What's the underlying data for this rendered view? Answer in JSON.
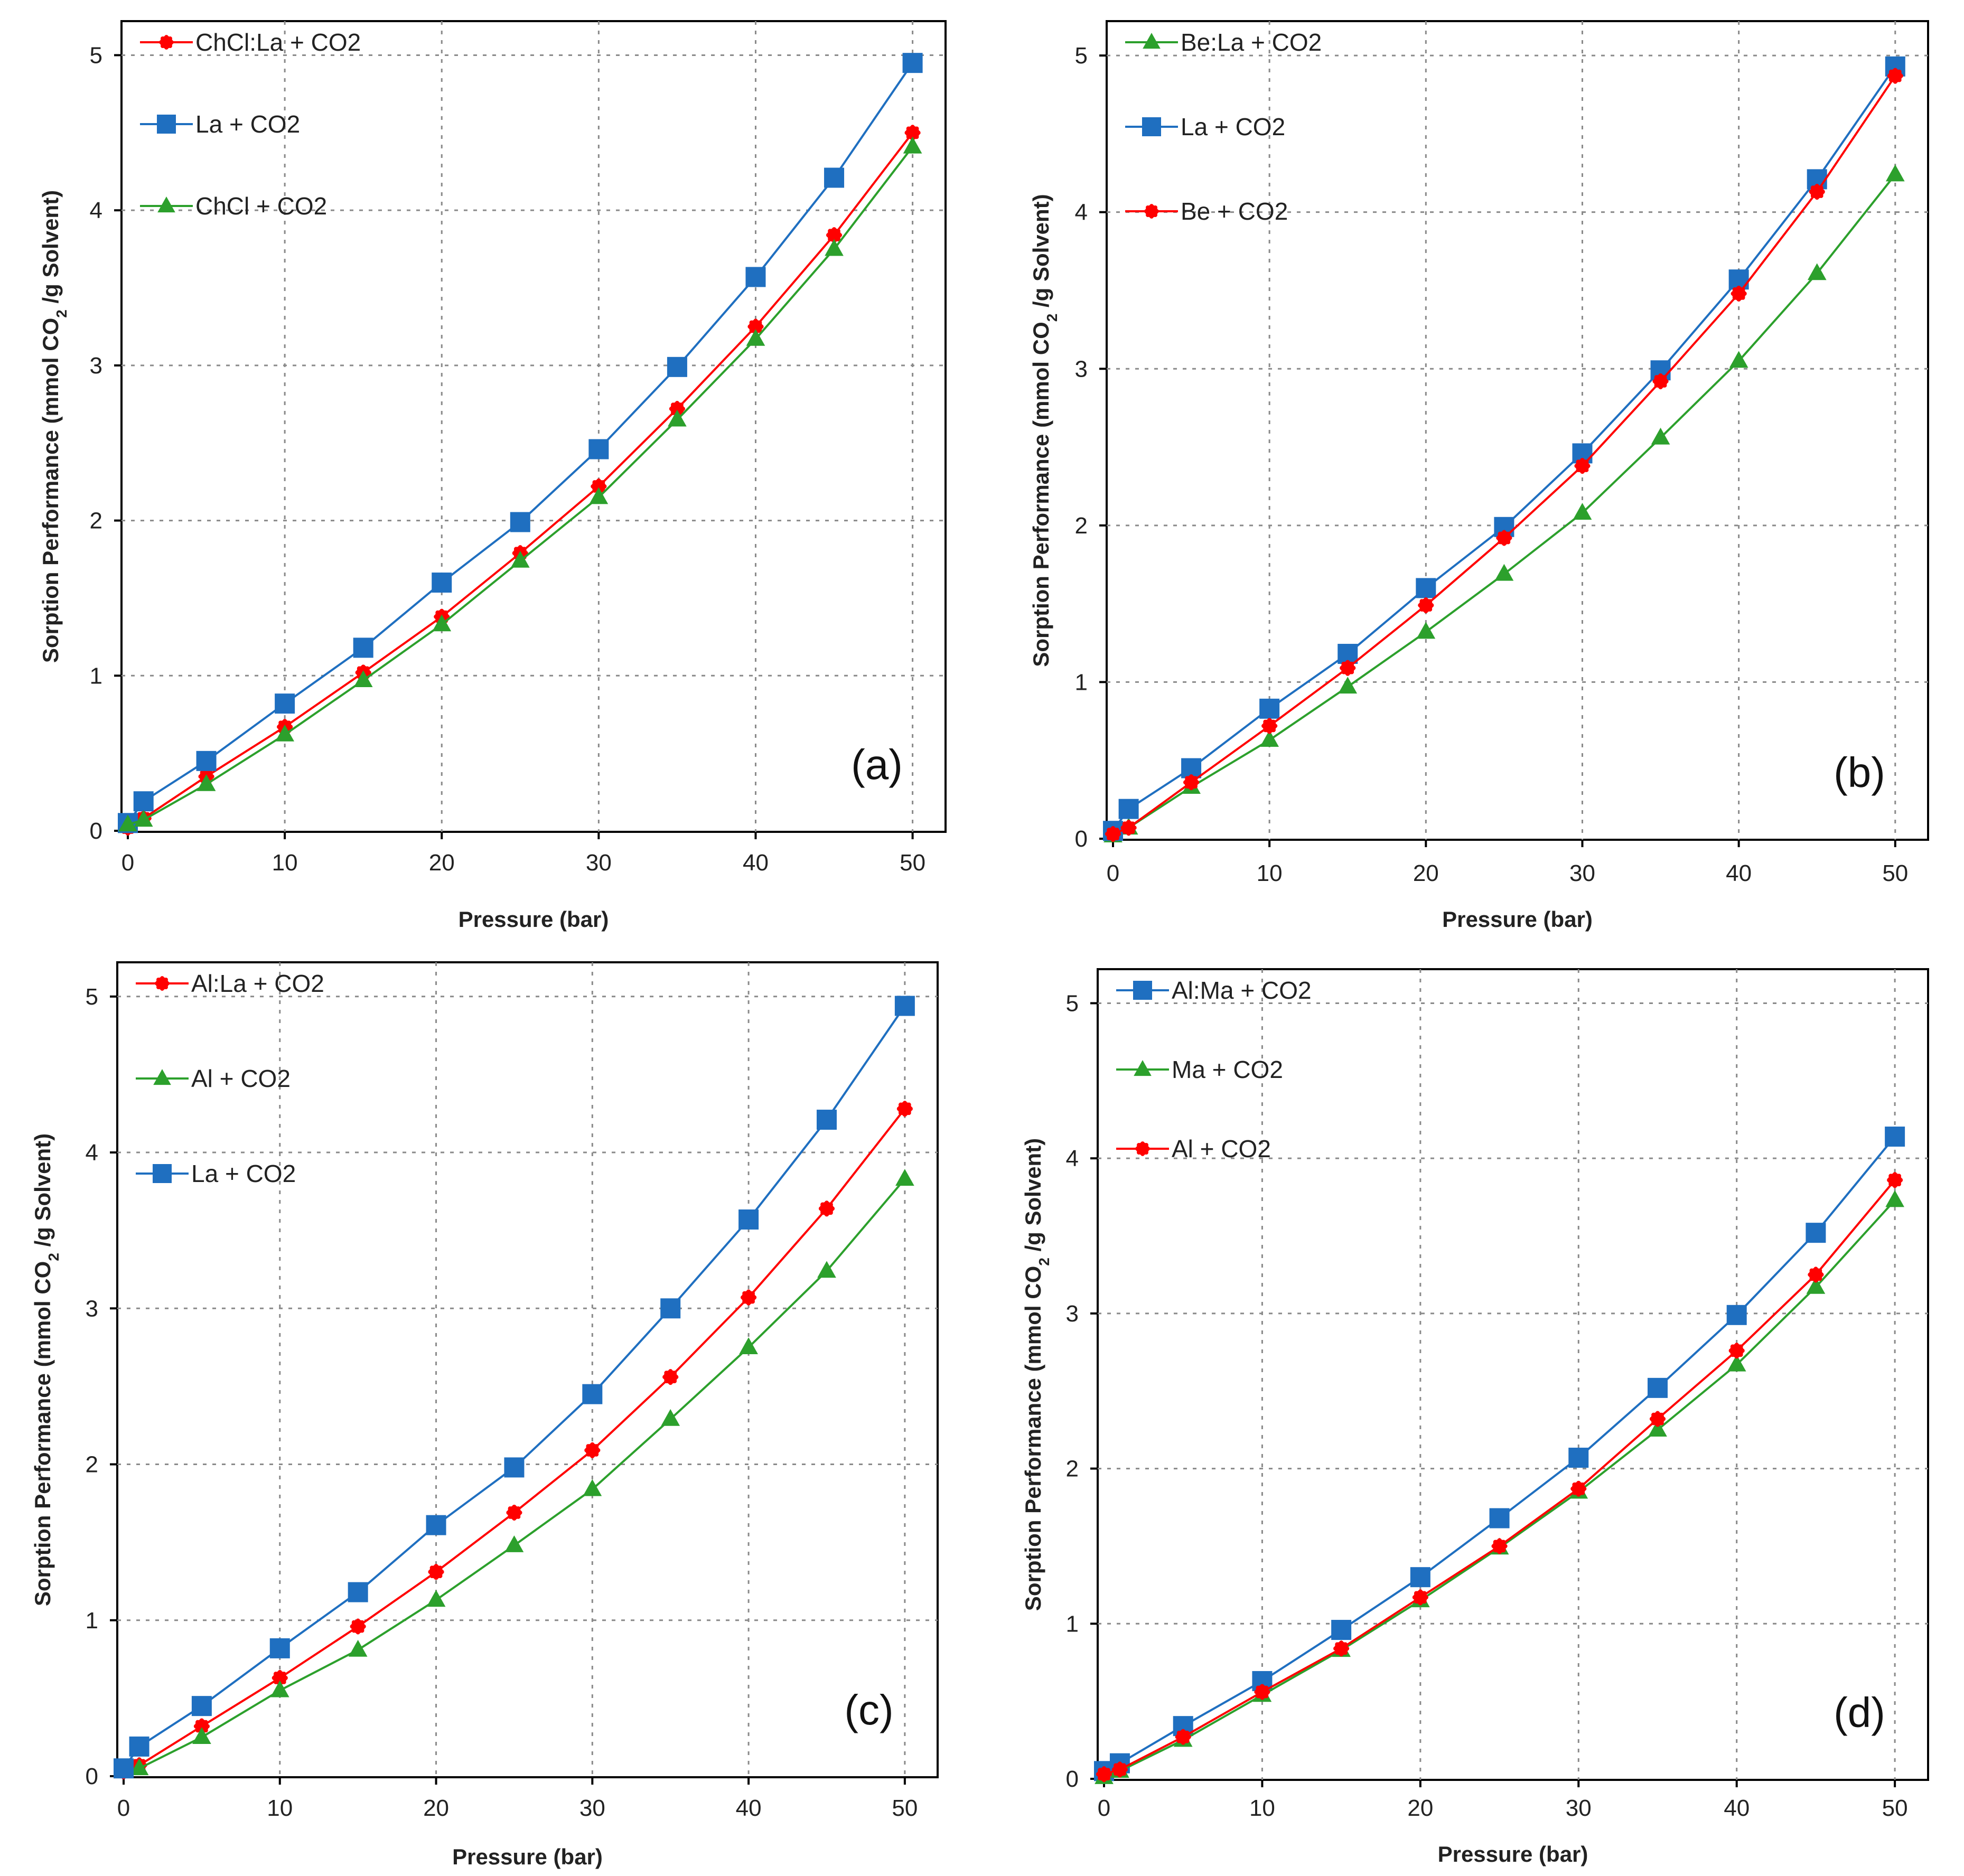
{
  "chart_data": [
    {
      "type": "line",
      "panel_label": "(a)",
      "xlabel": "Pressure (bar)",
      "ylabel_prefix": "Sorption Performance (mmol CO",
      "ylabel_sub": "2",
      "ylabel_suffix": " /g Solvent)",
      "xlim": [
        0,
        50
      ],
      "ylim": [
        0,
        5
      ],
      "xticks": [
        0,
        10,
        20,
        30,
        40,
        50
      ],
      "yticks": [
        0,
        1,
        2,
        3,
        4,
        5
      ],
      "grid": true,
      "legend_position": "top-left",
      "series": [
        {
          "name": "ChCl:La + CO2",
          "color": "#ff0000",
          "marker": "circle",
          "x": [
            0,
            1,
            5,
            10,
            15,
            20,
            25,
            30,
            35,
            40,
            45,
            50
          ],
          "values": [
            0.02,
            0.08,
            0.35,
            0.67,
            1.02,
            1.38,
            1.79,
            2.22,
            2.72,
            3.25,
            3.84,
            4.5
          ]
        },
        {
          "name": "La + CO2",
          "color": "#1f6fc0",
          "marker": "square",
          "x": [
            0,
            1,
            5,
            10,
            15,
            20,
            25,
            30,
            35,
            40,
            45,
            50
          ],
          "values": [
            0.05,
            0.19,
            0.45,
            0.82,
            1.18,
            1.6,
            1.99,
            2.46,
            2.99,
            3.57,
            4.21,
            4.95
          ]
        },
        {
          "name": "ChCl + CO2",
          "color": "#2ca02c",
          "marker": "triangle",
          "x": [
            0,
            1,
            5,
            10,
            15,
            20,
            25,
            30,
            35,
            40,
            45,
            50
          ],
          "values": [
            0.04,
            0.07,
            0.3,
            0.62,
            0.97,
            1.33,
            1.74,
            2.15,
            2.65,
            3.17,
            3.75,
            4.41
          ]
        }
      ]
    },
    {
      "type": "line",
      "panel_label": "(b)",
      "xlabel": "Pressure (bar)",
      "ylabel_prefix": "Sorption Performance (mmol CO",
      "ylabel_sub": "2",
      "ylabel_suffix": " /g Solvent)",
      "xlim": [
        0,
        50
      ],
      "ylim": [
        0,
        5
      ],
      "xticks": [
        0,
        10,
        20,
        30,
        40,
        50
      ],
      "yticks": [
        0,
        1,
        2,
        3,
        4,
        5
      ],
      "grid": true,
      "legend_position": "top-left",
      "series": [
        {
          "name": "Be:La + CO2",
          "color": "#2ca02c",
          "marker": "triangle",
          "x": [
            0,
            1,
            5,
            10,
            15,
            20,
            25,
            30,
            35,
            40,
            45,
            50
          ],
          "values": [
            0.02,
            0.07,
            0.33,
            0.63,
            0.97,
            1.32,
            1.69,
            2.08,
            2.56,
            3.05,
            3.61,
            4.24
          ]
        },
        {
          "name": "La + CO2",
          "color": "#1f6fc0",
          "marker": "square",
          "x": [
            0,
            1,
            5,
            10,
            15,
            20,
            25,
            30,
            35,
            40,
            45,
            50
          ],
          "values": [
            0.05,
            0.19,
            0.45,
            0.83,
            1.18,
            1.6,
            1.99,
            2.46,
            2.99,
            3.57,
            4.21,
            4.93
          ]
        },
        {
          "name": "Be + CO2",
          "color": "#ff0000",
          "marker": "circle",
          "x": [
            0,
            1,
            5,
            10,
            15,
            20,
            25,
            30,
            35,
            40,
            45,
            50
          ],
          "values": [
            0.03,
            0.07,
            0.36,
            0.72,
            1.09,
            1.49,
            1.92,
            2.38,
            2.92,
            3.48,
            4.13,
            4.87
          ]
        }
      ]
    },
    {
      "type": "line",
      "panel_label": "(c)",
      "xlabel": "Pressure (bar)",
      "ylabel_prefix": "Sorption Performance (mmol CO",
      "ylabel_sub": "2",
      "ylabel_suffix": " /g Solvent)",
      "xlim": [
        0,
        50
      ],
      "ylim": [
        0,
        5
      ],
      "xticks": [
        0,
        10,
        20,
        30,
        40,
        50
      ],
      "yticks": [
        0,
        1,
        2,
        3,
        4,
        5
      ],
      "grid": true,
      "legend_position": "top-left",
      "series": [
        {
          "name": "Al:La + CO2",
          "color": "#ff0000",
          "marker": "circle",
          "x": [
            0,
            1,
            5,
            10,
            15,
            20,
            25,
            30,
            35,
            40,
            45,
            50
          ],
          "values": [
            0.03,
            0.07,
            0.32,
            0.63,
            0.96,
            1.31,
            1.69,
            2.09,
            2.56,
            3.07,
            3.64,
            4.28
          ]
        },
        {
          "name": "Al + CO2",
          "color": "#2ca02c",
          "marker": "triangle",
          "x": [
            0,
            1,
            5,
            10,
            15,
            20,
            25,
            30,
            35,
            40,
            45,
            50
          ],
          "values": [
            0.03,
            0.05,
            0.25,
            0.55,
            0.81,
            1.13,
            1.48,
            1.84,
            2.29,
            2.75,
            3.24,
            3.83
          ]
        },
        {
          "name": "La + CO2",
          "color": "#1f6fc0",
          "marker": "square",
          "x": [
            0,
            1,
            5,
            10,
            15,
            20,
            25,
            30,
            35,
            40,
            45,
            50
          ],
          "values": [
            0.05,
            0.19,
            0.45,
            0.82,
            1.18,
            1.61,
            1.98,
            2.45,
            3.0,
            3.57,
            4.21,
            4.94
          ]
        }
      ]
    },
    {
      "type": "line",
      "panel_label": "(d)",
      "xlabel": "Pressure (bar)",
      "ylabel_prefix": "Sorption Performance (mmol CO",
      "ylabel_sub": "2",
      "ylabel_suffix": " /g Solvent)",
      "xlim": [
        0,
        50
      ],
      "ylim": [
        0,
        5
      ],
      "xticks": [
        0,
        10,
        20,
        30,
        40,
        50
      ],
      "yticks": [
        0,
        1,
        2,
        3,
        4,
        5
      ],
      "grid": true,
      "legend_position": "top-left",
      "series": [
        {
          "name": "Al:Ma + CO2",
          "color": "#1f6fc0",
          "marker": "square",
          "x": [
            0,
            1,
            5,
            10,
            15,
            20,
            25,
            30,
            35,
            40,
            45,
            50
          ],
          "values": [
            0.05,
            0.1,
            0.34,
            0.63,
            0.96,
            1.3,
            1.68,
            2.07,
            2.52,
            2.99,
            3.52,
            4.14
          ]
        },
        {
          "name": "Ma + CO2",
          "color": "#2ca02c",
          "marker": "triangle",
          "x": [
            0,
            1,
            5,
            10,
            15,
            20,
            25,
            30,
            35,
            40,
            45,
            50
          ],
          "values": [
            0.01,
            0.05,
            0.25,
            0.54,
            0.83,
            1.15,
            1.49,
            1.85,
            2.25,
            2.67,
            3.17,
            3.73
          ]
        },
        {
          "name": "Al + CO2",
          "color": "#ff0000",
          "marker": "circle",
          "x": [
            0,
            1,
            5,
            10,
            15,
            20,
            25,
            30,
            35,
            40,
            45,
            50
          ],
          "values": [
            0.03,
            0.06,
            0.27,
            0.56,
            0.84,
            1.17,
            1.5,
            1.87,
            2.32,
            2.76,
            3.25,
            3.86
          ]
        }
      ]
    }
  ]
}
